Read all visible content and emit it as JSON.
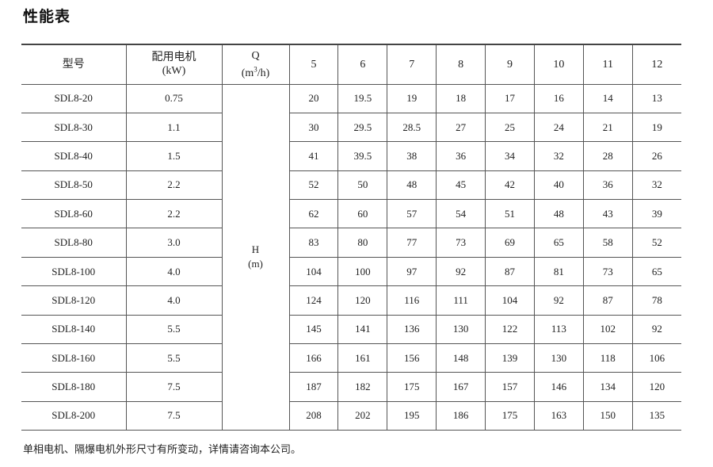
{
  "title": "性能表",
  "header": {
    "model": "型号",
    "motor": "配用电机",
    "motor_unit": "(kW)",
    "q": "Q",
    "q_unit_pre": "(m",
    "q_unit_sup": "3",
    "q_unit_post": "/h)",
    "flows": [
      "5",
      "6",
      "7",
      "8",
      "9",
      "10",
      "11",
      "12"
    ]
  },
  "head_label": {
    "h": "H",
    "unit": "(m)"
  },
  "rows": [
    {
      "model": "SDL8-20",
      "kw": "0.75",
      "h": [
        "20",
        "19.5",
        "19",
        "18",
        "17",
        "16",
        "14",
        "13"
      ]
    },
    {
      "model": "SDL8-30",
      "kw": "1.1",
      "h": [
        "30",
        "29.5",
        "28.5",
        "27",
        "25",
        "24",
        "21",
        "19"
      ]
    },
    {
      "model": "SDL8-40",
      "kw": "1.5",
      "h": [
        "41",
        "39.5",
        "38",
        "36",
        "34",
        "32",
        "28",
        "26"
      ]
    },
    {
      "model": "SDL8-50",
      "kw": "2.2",
      "h": [
        "52",
        "50",
        "48",
        "45",
        "42",
        "40",
        "36",
        "32"
      ]
    },
    {
      "model": "SDL8-60",
      "kw": "2.2",
      "h": [
        "62",
        "60",
        "57",
        "54",
        "51",
        "48",
        "43",
        "39"
      ]
    },
    {
      "model": "SDL8-80",
      "kw": "3.0",
      "h": [
        "83",
        "80",
        "77",
        "73",
        "69",
        "65",
        "58",
        "52"
      ]
    },
    {
      "model": "SDL8-100",
      "kw": "4.0",
      "h": [
        "104",
        "100",
        "97",
        "92",
        "87",
        "81",
        "73",
        "65"
      ]
    },
    {
      "model": "SDL8-120",
      "kw": "4.0",
      "h": [
        "124",
        "120",
        "116",
        "111",
        "104",
        "92",
        "87",
        "78"
      ]
    },
    {
      "model": "SDL8-140",
      "kw": "5.5",
      "h": [
        "145",
        "141",
        "136",
        "130",
        "122",
        "113",
        "102",
        "92"
      ]
    },
    {
      "model": "SDL8-160",
      "kw": "5.5",
      "h": [
        "166",
        "161",
        "156",
        "148",
        "139",
        "130",
        "118",
        "106"
      ]
    },
    {
      "model": "SDL8-180",
      "kw": "7.5",
      "h": [
        "187",
        "182",
        "175",
        "167",
        "157",
        "146",
        "134",
        "120"
      ]
    },
    {
      "model": "SDL8-200",
      "kw": "7.5",
      "h": [
        "208",
        "202",
        "195",
        "186",
        "175",
        "163",
        "150",
        "135"
      ]
    }
  ],
  "footnote": "单相电机、隔爆电机外形尺寸有所变动，详情请咨询本公司。"
}
